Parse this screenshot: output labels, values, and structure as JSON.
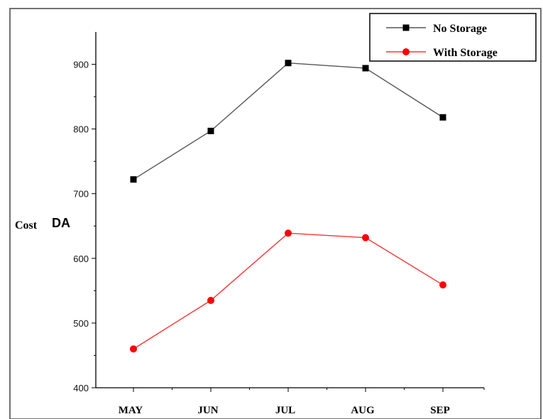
{
  "chart_data": {
    "type": "line",
    "categories": [
      "MAY",
      "JUN",
      "JUL",
      "AUG",
      "SEP"
    ],
    "ylabel": "Cost",
    "ylabel_unit": "DA",
    "ylim": [
      400,
      950
    ],
    "yticks": [
      400,
      500,
      600,
      700,
      800,
      900
    ],
    "grid": false,
    "legend_position": "top-right",
    "series": [
      {
        "name": "No Storage",
        "values": [
          722,
          797,
          902,
          894,
          818
        ],
        "color": "#000000",
        "line_color": "#555555",
        "marker": "square"
      },
      {
        "name": "With Storage",
        "values": [
          460,
          535,
          639,
          632,
          559
        ],
        "color": "#ff0000",
        "line_color": "#ff3333",
        "marker": "circle"
      }
    ]
  }
}
